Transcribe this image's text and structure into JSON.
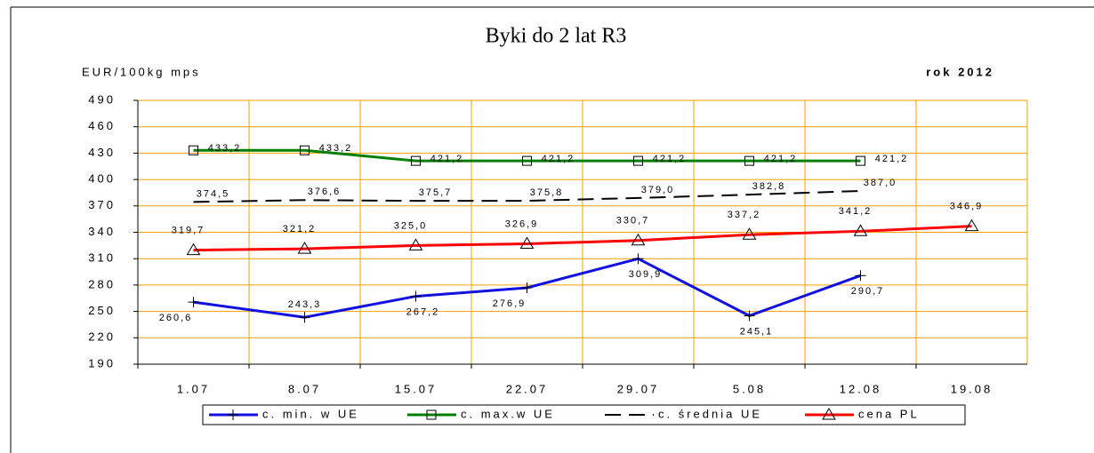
{
  "chart_data": {
    "type": "line",
    "title": "Byki do 2 lat R3",
    "y_label": "EUR/100kg mps",
    "annotation": "rok 2012",
    "categories": [
      "1.07",
      "8.07",
      "15.07",
      "22.07",
      "29.07",
      "5.08",
      "12.08",
      "19.08"
    ],
    "ylim": [
      190,
      490
    ],
    "yticks": [
      190,
      220,
      250,
      280,
      310,
      340,
      370,
      400,
      430,
      460,
      490
    ],
    "grid": true,
    "legend": "bottom",
    "series": [
      {
        "name": "c. min. w UE",
        "color": "#1010e0",
        "marker": "plus",
        "dash": false,
        "values": [
          260.6,
          243.3,
          267.2,
          276.9,
          309.9,
          245.1,
          290.7,
          null
        ],
        "value_labels": [
          "260,6",
          "243,3",
          "267,2",
          "276,9",
          "309,9",
          "245,1",
          "290,7",
          null
        ]
      },
      {
        "name": "c. max.w UE",
        "color": "#008000",
        "marker": "square",
        "dash": false,
        "values": [
          433.2,
          433.2,
          421.2,
          421.2,
          421.2,
          421.2,
          421.2,
          null
        ],
        "value_labels": [
          "433,2",
          "433,2",
          "421,2",
          "421,2",
          "421,2",
          "421,2",
          "421,2",
          null
        ]
      },
      {
        "name": "c. średnia UE",
        "color": "#000000",
        "marker": "none",
        "dash": true,
        "values": [
          374.5,
          376.6,
          375.7,
          375.8,
          379.0,
          382.8,
          387.0,
          null
        ],
        "value_labels": [
          "374,5",
          "376,6",
          "375,7",
          "375,8",
          "379,0",
          "382,8",
          "387,0",
          null
        ]
      },
      {
        "name": "cena PL",
        "color": "#ff0000",
        "marker": "triangle",
        "dash": false,
        "values": [
          319.7,
          321.2,
          325.0,
          326.9,
          330.7,
          337.2,
          341.2,
          346.9
        ],
        "value_labels": [
          "319,7",
          "321,2",
          "325,0",
          "326,9",
          "330,7",
          "337,2",
          "341,2",
          "346,9"
        ]
      }
    ]
  }
}
